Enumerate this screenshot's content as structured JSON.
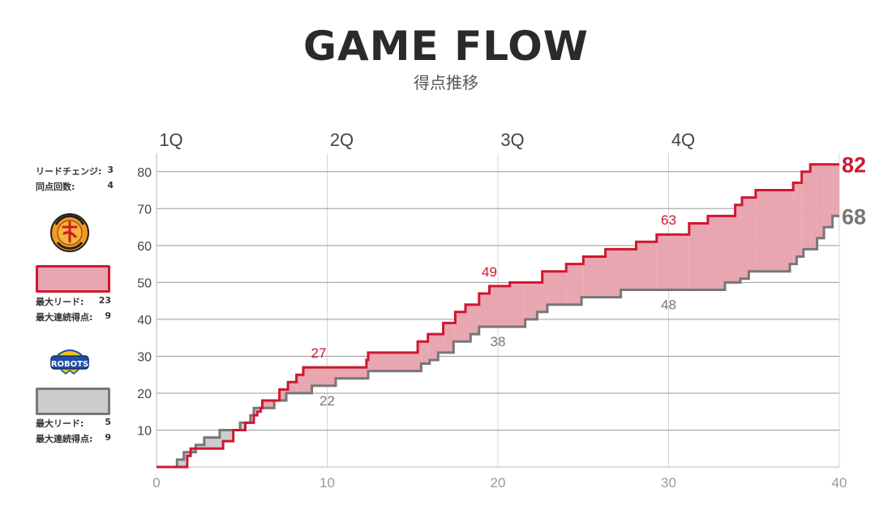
{
  "header": {
    "title": "GAME FLOW",
    "subtitle": "得点推移"
  },
  "sidebar": {
    "summary": [
      {
        "label": "リードチェンジ:",
        "value": "3"
      },
      {
        "label": "同点回数:",
        "value": "4"
      }
    ],
    "home": {
      "logo_text": "NAGOYA DIAMOND DOLPHINS",
      "color": "#d0172f",
      "fill": "#e8a6b0",
      "stats": [
        {
          "label": "最大リード:",
          "value": "23"
        },
        {
          "label": "最大連続得点:",
          "value": "9"
        }
      ]
    },
    "away": {
      "logo_text": "ROBOTS",
      "color": "#777777",
      "fill": "#cccccc",
      "stats": [
        {
          "label": "最大リード:",
          "value": "5"
        },
        {
          "label": "最大連続得点:",
          "value": "9"
        }
      ]
    }
  },
  "chart_data": {
    "type": "line",
    "title": "GAME FLOW",
    "subtitle": "得点推移",
    "xlabel": "",
    "ylabel": "",
    "xlim": [
      0,
      40
    ],
    "ylim": [
      0,
      85
    ],
    "x_ticks": [
      0,
      10,
      20,
      30,
      40
    ],
    "y_ticks": [
      10,
      20,
      30,
      40,
      50,
      60,
      70,
      80
    ],
    "quarters": [
      {
        "label": "1Q",
        "x": 0
      },
      {
        "label": "2Q",
        "x": 10
      },
      {
        "label": "3Q",
        "x": 20
      },
      {
        "label": "4Q",
        "x": 30
      }
    ],
    "grid": true,
    "series": [
      {
        "role": "home",
        "color": "#d0172f",
        "points": [
          [
            0,
            0
          ],
          [
            1.8,
            0
          ],
          [
            1.8,
            3
          ],
          [
            2,
            3
          ],
          [
            2,
            5
          ],
          [
            3.9,
            5
          ],
          [
            3.9,
            7
          ],
          [
            4.5,
            7
          ],
          [
            4.5,
            10
          ],
          [
            5.2,
            10
          ],
          [
            5.2,
            12
          ],
          [
            5.7,
            12
          ],
          [
            5.7,
            14
          ],
          [
            5.9,
            14
          ],
          [
            5.9,
            15
          ],
          [
            6.1,
            15
          ],
          [
            6.1,
            16
          ],
          [
            6.2,
            16
          ],
          [
            6.2,
            18
          ],
          [
            7.2,
            18
          ],
          [
            7.2,
            21
          ],
          [
            7.7,
            21
          ],
          [
            7.7,
            23
          ],
          [
            8.2,
            23
          ],
          [
            8.2,
            25
          ],
          [
            8.6,
            25
          ],
          [
            8.6,
            27
          ],
          [
            12.3,
            27
          ],
          [
            12.3,
            29
          ],
          [
            12.4,
            29
          ],
          [
            12.4,
            31
          ],
          [
            15.3,
            31
          ],
          [
            15.3,
            34
          ],
          [
            15.9,
            34
          ],
          [
            15.9,
            36
          ],
          [
            16.8,
            36
          ],
          [
            16.8,
            39
          ],
          [
            17.5,
            39
          ],
          [
            17.5,
            42
          ],
          [
            18.1,
            42
          ],
          [
            18.1,
            44
          ],
          [
            18.9,
            44
          ],
          [
            18.9,
            47
          ],
          [
            19.5,
            47
          ],
          [
            19.5,
            49
          ],
          [
            20.7,
            49
          ],
          [
            20.7,
            50
          ],
          [
            22.6,
            50
          ],
          [
            22.6,
            53
          ],
          [
            24,
            53
          ],
          [
            24,
            55
          ],
          [
            25,
            55
          ],
          [
            25,
            57
          ],
          [
            26.3,
            57
          ],
          [
            26.3,
            59
          ],
          [
            28.1,
            59
          ],
          [
            28.1,
            61
          ],
          [
            29.3,
            61
          ],
          [
            29.3,
            63
          ],
          [
            31.2,
            63
          ],
          [
            31.2,
            66
          ],
          [
            32.3,
            66
          ],
          [
            32.3,
            68
          ],
          [
            33.9,
            68
          ],
          [
            33.9,
            71
          ],
          [
            34.3,
            71
          ],
          [
            34.3,
            73
          ],
          [
            35.1,
            73
          ],
          [
            35.1,
            75
          ],
          [
            37.3,
            75
          ],
          [
            37.3,
            77
          ],
          [
            37.8,
            77
          ],
          [
            37.8,
            80
          ],
          [
            38.3,
            80
          ],
          [
            38.3,
            82
          ],
          [
            40,
            82
          ]
        ],
        "labels": [
          {
            "x": 9.5,
            "y": 27,
            "text": "27"
          },
          {
            "x": 19.5,
            "y": 49,
            "text": "49"
          },
          {
            "x": 30,
            "y": 63,
            "text": "63"
          }
        ],
        "final": "82"
      },
      {
        "role": "away",
        "color": "#777777",
        "points": [
          [
            0,
            0
          ],
          [
            1.2,
            0
          ],
          [
            1.2,
            2
          ],
          [
            1.6,
            2
          ],
          [
            1.6,
            4
          ],
          [
            2.3,
            4
          ],
          [
            2.3,
            6
          ],
          [
            2.8,
            6
          ],
          [
            2.8,
            8
          ],
          [
            3.7,
            8
          ],
          [
            3.7,
            10
          ],
          [
            4.9,
            10
          ],
          [
            4.9,
            12
          ],
          [
            5.5,
            12
          ],
          [
            5.5,
            14
          ],
          [
            5.7,
            14
          ],
          [
            5.7,
            16
          ],
          [
            6.9,
            16
          ],
          [
            6.9,
            18
          ],
          [
            7.6,
            18
          ],
          [
            7.6,
            20
          ],
          [
            9.1,
            20
          ],
          [
            9.1,
            22
          ],
          [
            10.5,
            22
          ],
          [
            10.5,
            24
          ],
          [
            12.4,
            24
          ],
          [
            12.4,
            26
          ],
          [
            15.5,
            26
          ],
          [
            15.5,
            28
          ],
          [
            16,
            28
          ],
          [
            16,
            29
          ],
          [
            16.5,
            29
          ],
          [
            16.5,
            31
          ],
          [
            17.4,
            31
          ],
          [
            17.4,
            34
          ],
          [
            18.4,
            34
          ],
          [
            18.4,
            36
          ],
          [
            18.9,
            36
          ],
          [
            18.9,
            38
          ],
          [
            21.6,
            38
          ],
          [
            21.6,
            40
          ],
          [
            22.3,
            40
          ],
          [
            22.3,
            42
          ],
          [
            22.9,
            42
          ],
          [
            22.9,
            44
          ],
          [
            24.9,
            44
          ],
          [
            24.9,
            46
          ],
          [
            27.2,
            46
          ],
          [
            27.2,
            48
          ],
          [
            33.3,
            48
          ],
          [
            33.3,
            50
          ],
          [
            34.2,
            50
          ],
          [
            34.2,
            51
          ],
          [
            34.7,
            51
          ],
          [
            34.7,
            53
          ],
          [
            37.1,
            53
          ],
          [
            37.1,
            55
          ],
          [
            37.5,
            55
          ],
          [
            37.5,
            57
          ],
          [
            37.9,
            57
          ],
          [
            37.9,
            59
          ],
          [
            38.7,
            59
          ],
          [
            38.7,
            62
          ],
          [
            39.1,
            62
          ],
          [
            39.1,
            65
          ],
          [
            39.6,
            65
          ],
          [
            39.6,
            68
          ],
          [
            40,
            68
          ]
        ],
        "labels": [
          {
            "x": 10,
            "y": 22,
            "text": "22"
          },
          {
            "x": 20,
            "y": 38,
            "text": "38"
          },
          {
            "x": 30,
            "y": 48,
            "text": "48"
          }
        ],
        "final": "68"
      }
    ]
  }
}
